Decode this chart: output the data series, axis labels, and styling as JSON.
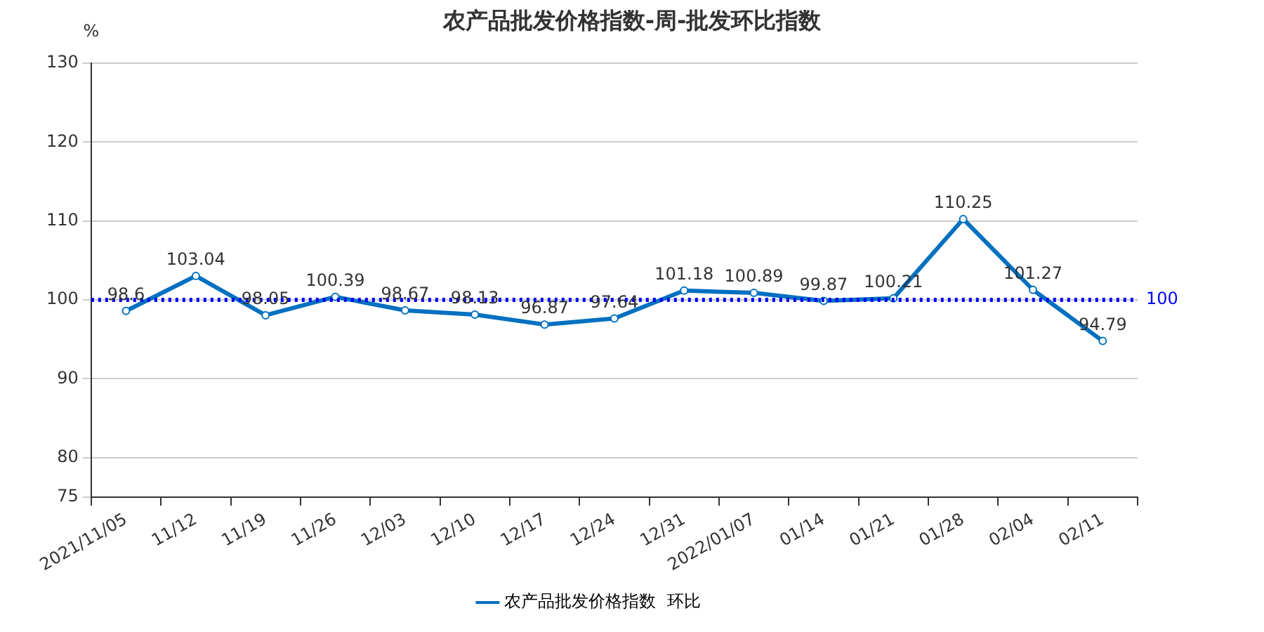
{
  "chart_data": {
    "type": "line",
    "title": "农产品批发价格指数-周-批发环比指数",
    "ylabel": "%",
    "categories": [
      "2021/11/05",
      "11/12",
      "11/19",
      "11/26",
      "12/03",
      "12/10",
      "12/17",
      "12/24",
      "12/31",
      "2022/01/07",
      "01/14",
      "01/21",
      "01/28",
      "02/04",
      "02/11"
    ],
    "series": [
      {
        "name": "农产品批发价格指数  环比",
        "color": "#0070c0",
        "values": [
          98.6,
          103.04,
          98.05,
          100.39,
          98.67,
          98.13,
          96.87,
          97.64,
          101.18,
          100.89,
          99.87,
          100.21,
          110.25,
          101.27,
          94.79
        ]
      }
    ],
    "ylim": [
      75,
      130
    ],
    "yticks": [
      75,
      80,
      90,
      100,
      110,
      120,
      130
    ],
    "ref_lines": [
      {
        "axis": "y",
        "value": 100,
        "label": "100",
        "color": "#0000ff",
        "line_style": "dotted"
      }
    ],
    "data_labels": true,
    "grid": "y",
    "legend": "bottom",
    "marker": "circle",
    "line_style": "solid"
  }
}
